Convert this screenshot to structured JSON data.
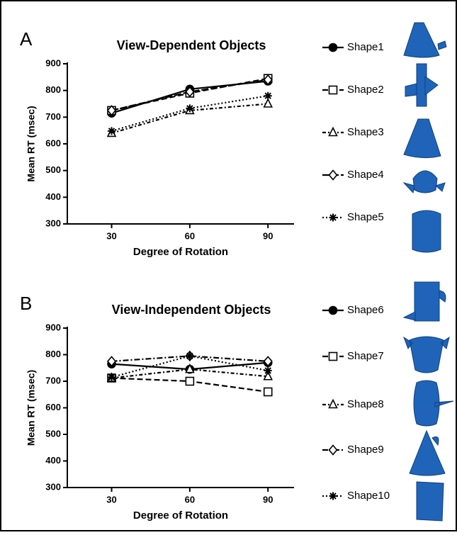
{
  "chart_data": [
    {
      "type": "line",
      "panel_label": "A",
      "title": "View-Dependent Objects",
      "x_label": "Degree of Rotation",
      "y_label": "Mean RT (msec)",
      "x": [
        30,
        60,
        90
      ],
      "xlim": [
        13,
        100
      ],
      "xticks": [
        30,
        60,
        90
      ],
      "ylim": [
        300,
        900
      ],
      "yticks": [
        300,
        400,
        500,
        600,
        700,
        800,
        900
      ],
      "series": [
        {
          "name": "Shape1",
          "color": "#000000",
          "marker": "circle",
          "dash": "none",
          "values": [
            715,
            805,
            835
          ]
        },
        {
          "name": "Shape2",
          "color": "#000000",
          "marker": "square",
          "dash": "8,4",
          "values": [
            725,
            790,
            845
          ]
        },
        {
          "name": "Shape3",
          "color": "#000000",
          "marker": "triangle",
          "dash": "5,3,2,3",
          "values": [
            640,
            725,
            750
          ]
        },
        {
          "name": "Shape4",
          "color": "#000000",
          "marker": "diamond",
          "dash": "10,3",
          "values": [
            725,
            795,
            840
          ]
        },
        {
          "name": "Shape5",
          "color": "#000000",
          "marker": "asterisk",
          "dash": "2,3",
          "values": [
            648,
            733,
            780
          ]
        }
      ]
    },
    {
      "type": "line",
      "panel_label": "B",
      "title": "View-Independent Objects",
      "x_label": "Degree of Rotation",
      "y_label": "Mean RT (msec)",
      "x": [
        30,
        60,
        90
      ],
      "xlim": [
        13,
        100
      ],
      "xticks": [
        30,
        60,
        90
      ],
      "ylim": [
        300,
        900
      ],
      "yticks": [
        300,
        400,
        500,
        600,
        700,
        800,
        900
      ],
      "series": [
        {
          "name": "Shape6",
          "color": "#000000",
          "marker": "circle",
          "dash": "none",
          "values": [
            765,
            745,
            770
          ]
        },
        {
          "name": "Shape7",
          "color": "#000000",
          "marker": "square",
          "dash": "8,4",
          "values": [
            712,
            700,
            660
          ]
        },
        {
          "name": "Shape8",
          "color": "#000000",
          "marker": "triangle",
          "dash": "5,3,2,3",
          "values": [
            712,
            745,
            718
          ]
        },
        {
          "name": "Shape9",
          "color": "#000000",
          "marker": "diamond",
          "dash": "8,3,2,3",
          "values": [
            775,
            795,
            775
          ]
        },
        {
          "name": "Shape10",
          "color": "#000000",
          "marker": "asterisk",
          "dash": "2,3",
          "values": [
            715,
            795,
            740
          ]
        }
      ]
    }
  ]
}
